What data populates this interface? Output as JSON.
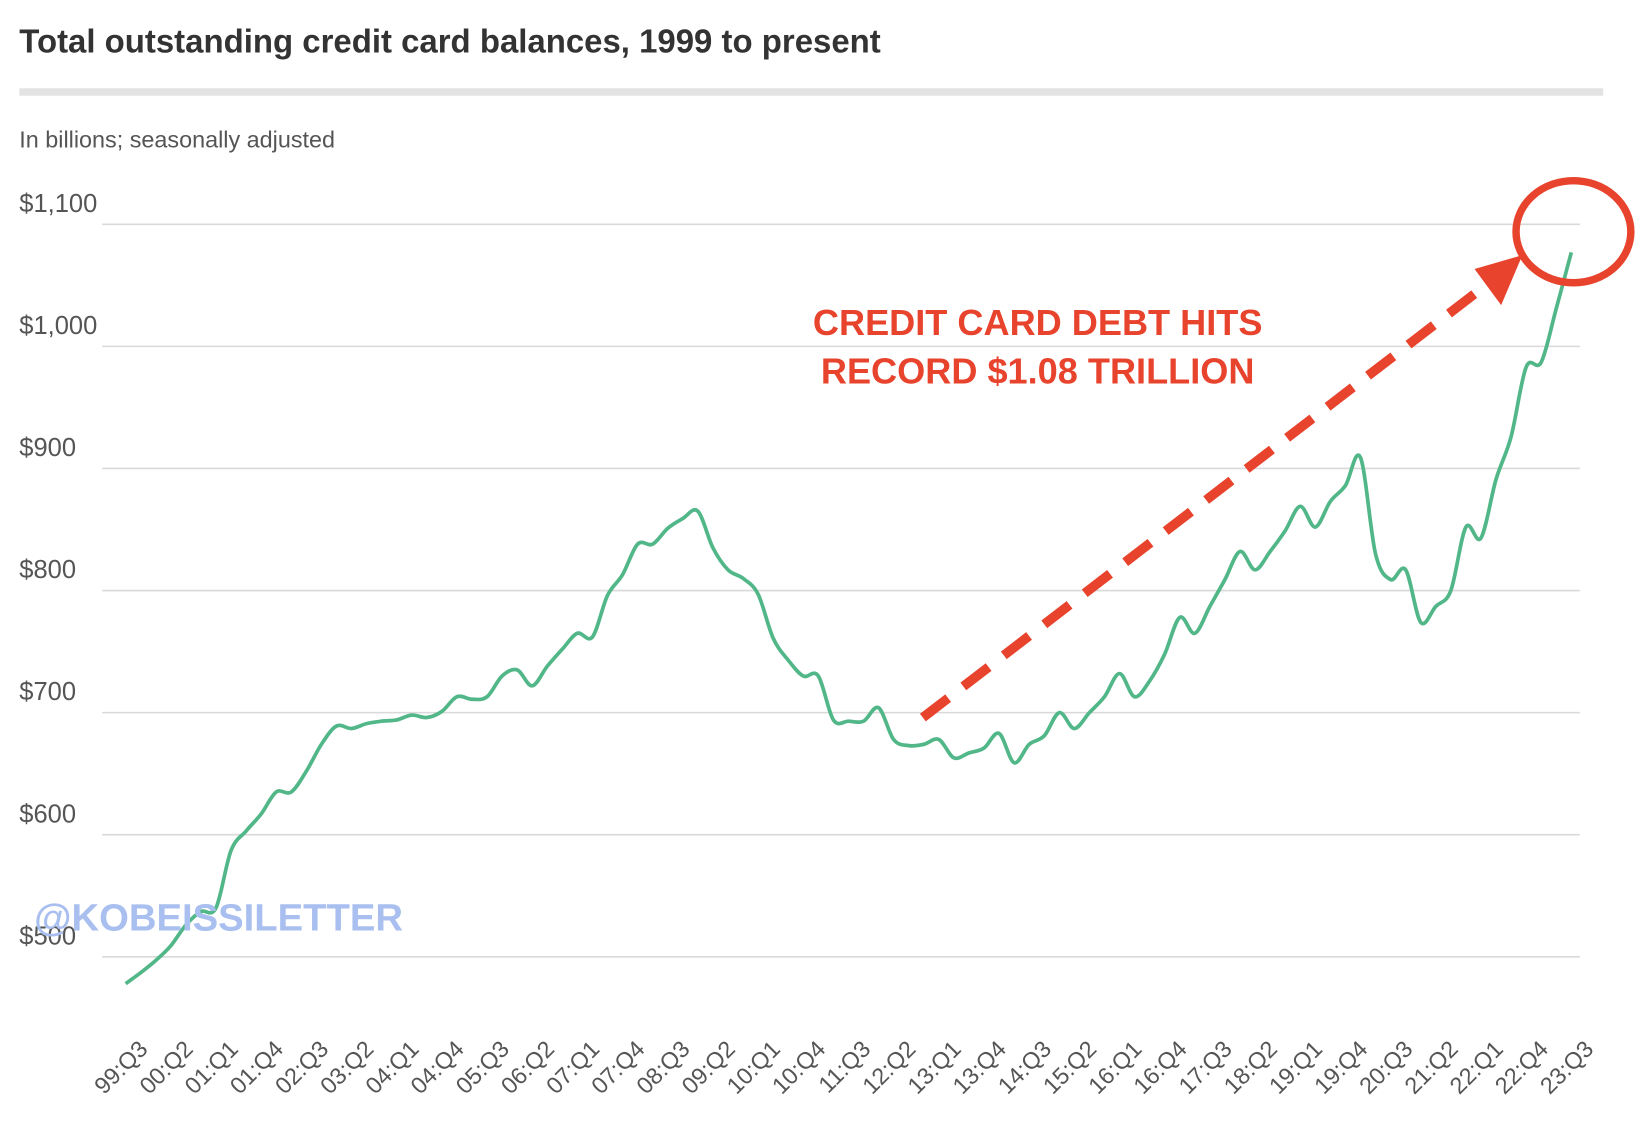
{
  "chart_data": {
    "type": "line",
    "title": "Total outstanding credit card balances, 1999 to present",
    "subtitle": "In billions; seasonally adjusted",
    "annotations": [
      "CREDIT CARD DEBT HITS",
      "RECORD $1.08 TRILLION"
    ],
    "watermark": "@KOBEISSILETTER",
    "color": "#52b788",
    "grid": true,
    "categories": [
      "99:Q3",
      null,
      null,
      "00:Q2",
      null,
      null,
      "01:Q1",
      null,
      null,
      "01:Q4",
      null,
      null,
      "02:Q3",
      null,
      null,
      "03:Q2",
      null,
      null,
      "04:Q1",
      null,
      null,
      "04:Q4",
      null,
      null,
      "05:Q3",
      null,
      null,
      "06:Q2",
      null,
      null,
      "07:Q1",
      null,
      null,
      "07:Q4",
      null,
      null,
      "08:Q3",
      null,
      null,
      "09:Q2",
      null,
      null,
      "10:Q1",
      null,
      null,
      "10:Q4",
      null,
      null,
      "11:Q3",
      null,
      null,
      "12:Q2",
      null,
      null,
      "13:Q1",
      null,
      null,
      "13:Q4",
      null,
      null,
      "14:Q3",
      null,
      null,
      "15:Q2",
      null,
      null,
      "16:Q1",
      null,
      null,
      "16:Q4",
      null,
      null,
      "17:Q3",
      null,
      null,
      "18:Q2",
      null,
      null,
      "19:Q1",
      null,
      null,
      "19:Q4",
      null,
      null,
      "20:Q3",
      null,
      null,
      "21:Q2",
      null,
      null,
      "22:Q1",
      null,
      null,
      "22:Q4",
      null,
      null,
      "23:Q3"
    ],
    "values": [
      478,
      487,
      497,
      509,
      526,
      537,
      540,
      587,
      603,
      617,
      635,
      635,
      652,
      674,
      689,
      687,
      691,
      693,
      694,
      698,
      696,
      701,
      713,
      711,
      713,
      730,
      735,
      722,
      738,
      752,
      765,
      762,
      796,
      813,
      838,
      838,
      851,
      859,
      865,
      835,
      817,
      810,
      797,
      761,
      743,
      730,
      730,
      694,
      693,
      693,
      704,
      678,
      673,
      674,
      678,
      663,
      667,
      671,
      683,
      659,
      674,
      681,
      700,
      687,
      700,
      713,
      732,
      713,
      726,
      748,
      778,
      765,
      787,
      809,
      832,
      817,
      832,
      849,
      869,
      852,
      873,
      886,
      909,
      830,
      809,
      817,
      774,
      787,
      800,
      852,
      843,
      891,
      926,
      983,
      987,
      1031,
      1077
    ],
    "ylim": [
      450,
      1100
    ],
    "yticks": [
      {
        "value": 500,
        "label": "$500"
      },
      {
        "value": 600,
        "label": "$600"
      },
      {
        "value": 700,
        "label": "$700"
      },
      {
        "value": 800,
        "label": "$800"
      },
      {
        "value": 900,
        "label": "$900"
      },
      {
        "value": 1000,
        "label": "$1,000"
      },
      {
        "value": 1100,
        "label": "$1,100"
      }
    ]
  }
}
